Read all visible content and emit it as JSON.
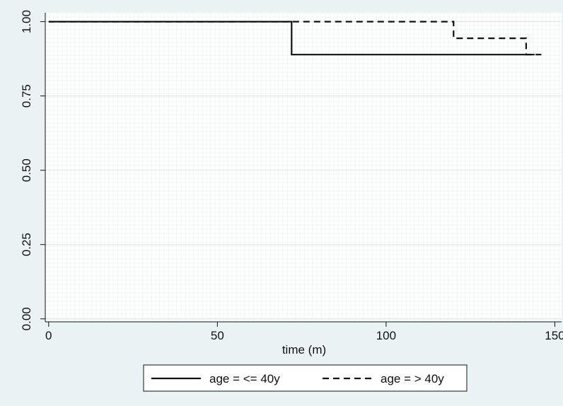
{
  "chart_data": {
    "type": "line",
    "title": "",
    "xlabel": "time (m)",
    "ylabel": "",
    "xlim": [
      -1,
      152
    ],
    "ylim": [
      -0.01,
      1.03
    ],
    "xticks": [
      0,
      50,
      100,
      150
    ],
    "yticks": [
      0.0,
      0.25,
      0.5,
      0.75,
      1.0
    ],
    "xtick_labels": [
      "0",
      "50",
      "100",
      "150"
    ],
    "ytick_labels": [
      "0.00",
      "0.25",
      "0.50",
      "0.75",
      "1.00"
    ],
    "grid": true,
    "step": true,
    "legend_position": "bottom",
    "series": [
      {
        "name": "age = <= 40y",
        "style": "solid",
        "color": "#111111",
        "x": [
          0,
          72,
          72,
          144
        ],
        "y": [
          1.0,
          1.0,
          0.889,
          0.889
        ]
      },
      {
        "name": "age = > 40y",
        "style": "dashed",
        "color": "#111111",
        "x": [
          0,
          120,
          120,
          141.5,
          141.5,
          146
        ],
        "y": [
          1.0,
          1.0,
          0.944,
          0.944,
          0.889,
          0.889
        ]
      }
    ]
  }
}
